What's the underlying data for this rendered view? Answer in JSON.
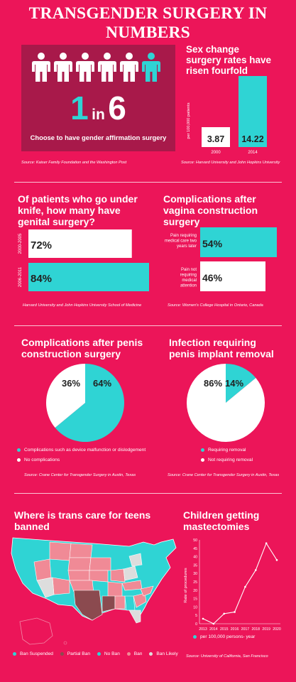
{
  "title": "TRANSGENDER SURGERY IN NUMBERS",
  "colors": {
    "background": "#ec1559",
    "dark_panel": "#a8194a",
    "cyan": "#2fd4d4",
    "white": "#ffffff",
    "pink_ban": "#f08a96",
    "brown_ban": "#8b4a4f",
    "grey_likely": "#dddddd"
  },
  "panel1": {
    "stat_big": "1",
    "stat_in": "in",
    "stat_big2": "6",
    "caption": "Choose to have gender affirmation surgery",
    "source": "Source: Kaiser Family Foundation and the Washington Post",
    "icons_total": 6,
    "icons_highlighted": 1
  },
  "panel2": {
    "title": "Sex change surgery rates have risen fourfold",
    "ylabel": "per 100,000 patients",
    "source": "Source: Harvard University and John Hopkins University"
  },
  "panel3": {
    "title": "Of patients who go under knife, how many have genital surgery?",
    "source": "Harvard University and John Hopkins University School of Medicine"
  },
  "panel4": {
    "title": "Complications after vagina construction surgery",
    "source": "Source: Women's College Hospital in Ontario, Canada"
  },
  "panel5": {
    "title": "Complications after penis construction surgery",
    "source": "Source: Crane Center for Transgender Surgery in Austin, Texas"
  },
  "panel6": {
    "title": "Infection requiring penis implant removal",
    "source": "Source: Crane Center for Transgender Surgery in Austin, Texas"
  },
  "panel7": {
    "title": "Where is trans care for teens banned",
    "legend": [
      {
        "label": "Ban Suspended",
        "color": "#2fd4d4"
      },
      {
        "label": "Partial Ban",
        "color": "#8b4a4f"
      },
      {
        "label": "No Ban",
        "color": "#2fd4d4"
      },
      {
        "label": "Ban",
        "color": "#f08a96"
      },
      {
        "label": "Ban Likely",
        "color": "#dddddd"
      }
    ]
  },
  "panel8": {
    "title": "Children getting mastectomies",
    "source": "Source: University of California, San Francisco"
  },
  "chart_data": [
    {
      "type": "bar",
      "title": "Sex change surgery rates have risen fourfold",
      "categories": [
        "2000",
        "2014"
      ],
      "values": [
        3.87,
        14.22
      ],
      "labels": [
        "3.87",
        "14.22"
      ],
      "ylabel": "per 100,000 patients"
    },
    {
      "type": "bar",
      "orientation": "horizontal",
      "title": "Of patients who go under knife, how many have genital surgery?",
      "categories": [
        "2000-2005",
        "2006-2011"
      ],
      "values": [
        72,
        84
      ],
      "labels": [
        "72%",
        "84%"
      ]
    },
    {
      "type": "bar",
      "orientation": "horizontal",
      "title": "Complications after vagina construction surgery",
      "categories": [
        "Pain requiring medical care two years later",
        "Pain not requiring medical attention"
      ],
      "values": [
        54,
        46
      ],
      "labels": [
        "54%",
        "46%"
      ]
    },
    {
      "type": "pie",
      "title": "Complications after penis construction surgery",
      "slices": [
        {
          "name": "Complications such as device malfunction or dislodgement",
          "value": 64,
          "label": "64%",
          "color": "#2fd4d4"
        },
        {
          "name": "No complications",
          "value": 36,
          "label": "36%",
          "color": "#ffffff"
        }
      ]
    },
    {
      "type": "pie",
      "title": "Infection requiring penis implant removal",
      "slices": [
        {
          "name": "Requiring removal",
          "value": 14,
          "label": "14%",
          "color": "#2fd4d4"
        },
        {
          "name": "Not requiring removal",
          "value": 86,
          "label": "86%",
          "color": "#ffffff"
        }
      ]
    },
    {
      "type": "line",
      "title": "Children getting mastectomies",
      "x": [
        "2013",
        "2014",
        "2015",
        "2016",
        "2017",
        "2018",
        "2019",
        "2020"
      ],
      "values": [
        3,
        0,
        6,
        7,
        22,
        32,
        48,
        38
      ],
      "ylabel": "Rate of procedures",
      "ylim": [
        0,
        50
      ],
      "yticks": [
        "0",
        "5",
        "10",
        "15",
        "20",
        "25",
        "30",
        "35",
        "40",
        "45",
        "50"
      ],
      "series_label": "per 100,000 persons- year"
    }
  ]
}
